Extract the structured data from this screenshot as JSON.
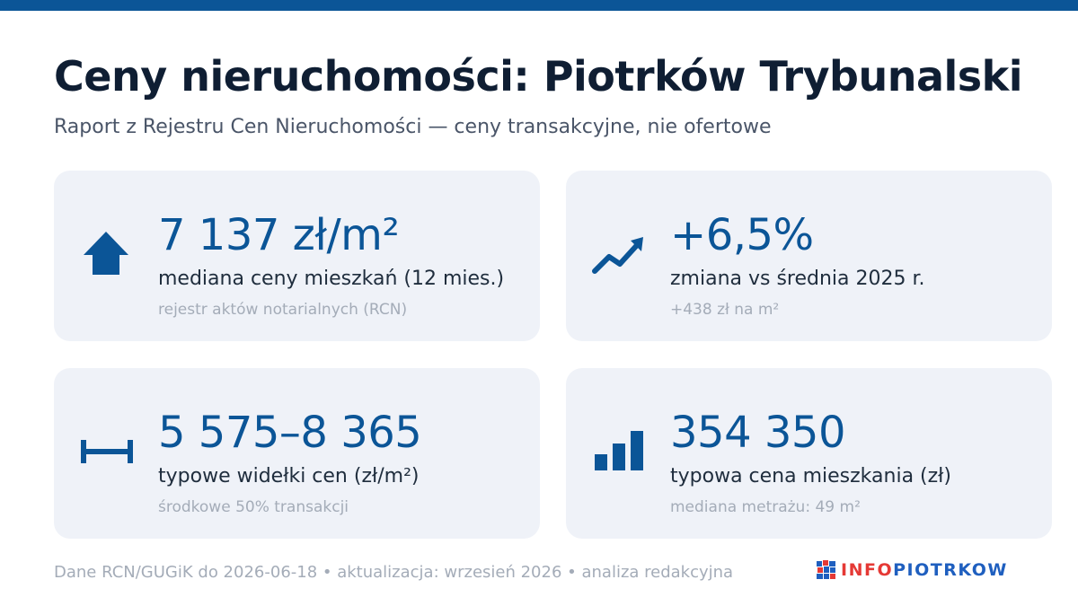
{
  "header": {
    "title": "Ceny nieruchomości: Piotrków Trybunalski",
    "subtitle": "Raport z Rejestru Cen Nieruchomości — ceny transakcyjne, nie ofertowe"
  },
  "cards": [
    {
      "icon": "house-icon",
      "value": "7 137 zł/m²",
      "label": "mediana ceny mieszkań (12 mies.)",
      "note": "rejestr aktów notarialnych (RCN)"
    },
    {
      "icon": "trend-up-icon",
      "value": "+6,5%",
      "label": "zmiana vs średnia 2025 r.",
      "note": "+438 zł na m²"
    },
    {
      "icon": "range-icon",
      "value": "5 575–8 365",
      "label": "typowe widełki cen (zł/m²)",
      "note": "środkowe 50% transakcji"
    },
    {
      "icon": "bar-chart-icon",
      "value": "354 350",
      "label": "typowa cena mieszkania (zł)",
      "note": "mediana metrażu: 49 m²"
    }
  ],
  "footer": {
    "text": "Dane RCN/GUGiK do 2026-06-18 • aktualizacja: wrzesień 2026 • analiza redakcyjna"
  },
  "logo": {
    "part1": "INFO",
    "part2": "PIOTRKOW",
    "icon": "mosaic-logo-icon"
  },
  "colors": {
    "accent": "#0b5597",
    "card_background": "#eff2f8",
    "logo_red": "#e53935",
    "logo_blue": "#1f5fbf"
  }
}
